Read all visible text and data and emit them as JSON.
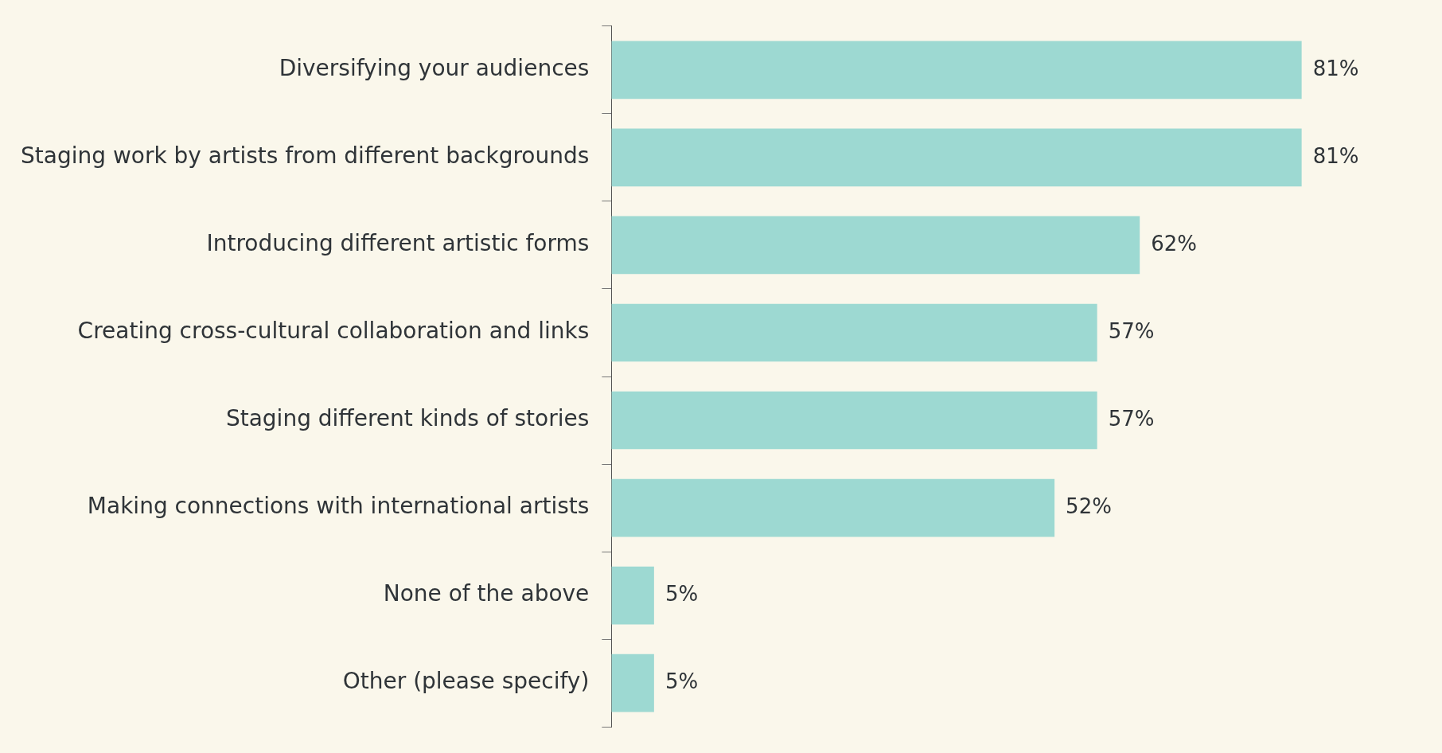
{
  "chart_data": {
    "type": "bar",
    "orientation": "horizontal",
    "categories": [
      "Diversifying your audiences",
      "Staging work by artists from different backgrounds",
      "Introducing different artistic forms",
      "Creating cross-cultural collaboration and links",
      "Staging different kinds of stories",
      "Making connections with international artists",
      "None of the above",
      "Other (please specify)"
    ],
    "values": [
      81,
      81,
      62,
      57,
      57,
      52,
      5,
      5
    ],
    "value_labels": [
      "81%",
      "81%",
      "62%",
      "57%",
      "57%",
      "52%",
      "5%",
      "5%"
    ],
    "color": "#9dd9d2",
    "tick_labels": "y"
  }
}
